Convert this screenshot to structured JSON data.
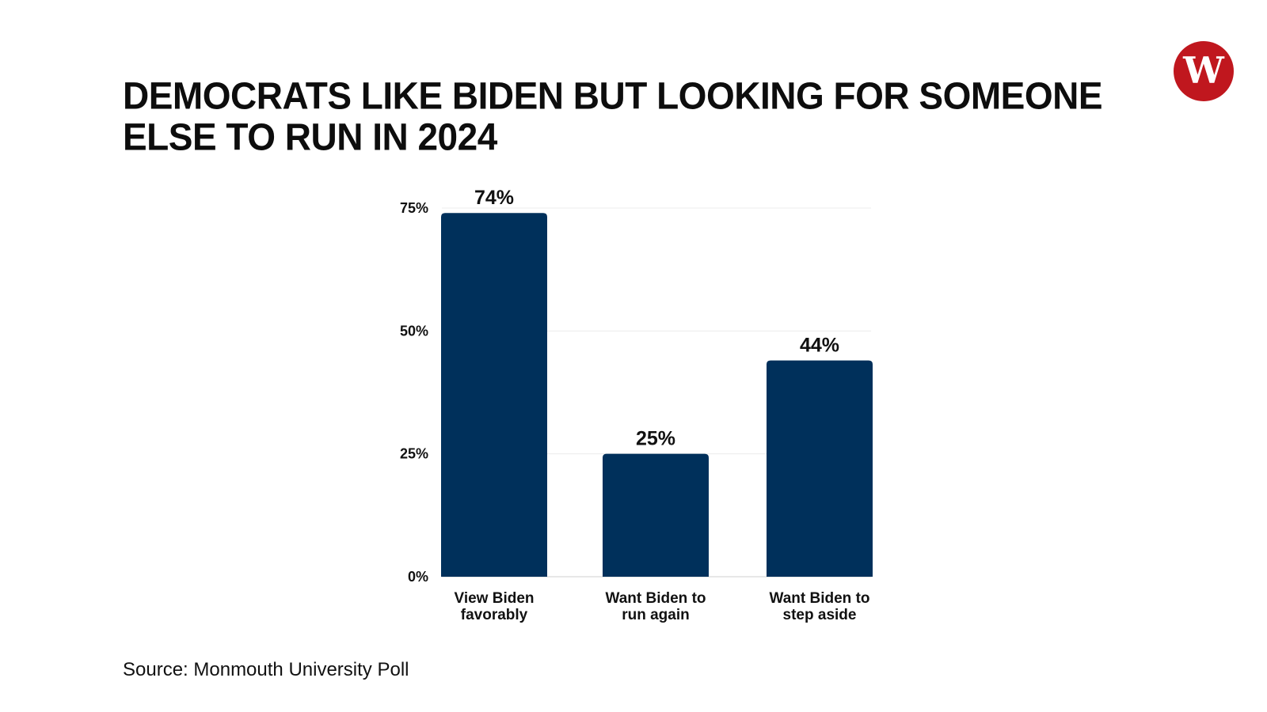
{
  "header": {
    "title": "DEMOCRATS LIKE BIDEN BUT LOOKING FOR SOMEONE ELSE TO RUN IN 2024"
  },
  "logo": {
    "letter": "W",
    "color": "#c0171e"
  },
  "chart_data": {
    "type": "bar",
    "title": "DEMOCRATS LIKE BIDEN BUT LOOKING FOR SOMEONE ELSE TO RUN IN 2024",
    "categories": [
      [
        "View Biden",
        "favorably"
      ],
      [
        "Want Biden to",
        "run again"
      ],
      [
        "Want Biden to",
        "step aside"
      ]
    ],
    "values": [
      74,
      25,
      44
    ],
    "value_labels": [
      "74%",
      "25%",
      "44%"
    ],
    "yticks": [
      0,
      25,
      50,
      75
    ],
    "ytick_labels": [
      "0%",
      "25%",
      "50%",
      "75%"
    ],
    "ylim": [
      0,
      75
    ],
    "grid": true,
    "bar_color": "#00305b",
    "xlabel": "",
    "ylabel": ""
  },
  "footer": {
    "source": "Source: Monmouth University Poll"
  }
}
